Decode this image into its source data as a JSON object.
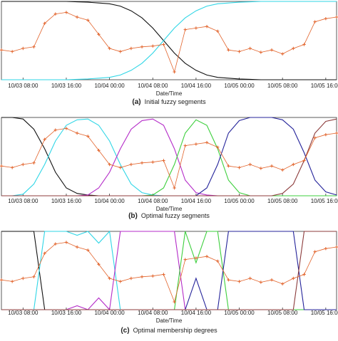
{
  "chart_data": [
    {
      "type": "line",
      "xlabel": "Date/Time",
      "caption_label": "(a)",
      "caption": "Initial fuzzy segments",
      "xlim": [
        4,
        66
      ],
      "ylim": [
        0,
        1
      ],
      "xticks": [
        {
          "value": 8,
          "label": "10/03 08:00"
        },
        {
          "value": 16,
          "label": "10/03 16:00"
        },
        {
          "value": 24,
          "label": "10/04 00:00"
        },
        {
          "value": 32,
          "label": "10/04 08:00"
        },
        {
          "value": 40,
          "label": "10/04 16:00"
        },
        {
          "value": 48,
          "label": "10/05 00:00"
        },
        {
          "value": 56,
          "label": "10/05 08:00"
        },
        {
          "value": 64,
          "label": "10/05 16:00"
        }
      ],
      "x": [
        4,
        6,
        8,
        10,
        12,
        14,
        16,
        18,
        20,
        22,
        24,
        26,
        28,
        30,
        32,
        34,
        36,
        38,
        40,
        42,
        44,
        46,
        48,
        50,
        52,
        54,
        56,
        58,
        60,
        62,
        64,
        66
      ],
      "series": [
        {
          "color": "#e2632b",
          "marker": "+",
          "values": [
            0.38,
            0.36,
            0.4,
            0.42,
            0.72,
            0.84,
            0.86,
            0.8,
            0.76,
            0.58,
            0.4,
            0.36,
            0.4,
            0.42,
            0.43,
            0.45,
            0.1,
            0.64,
            0.66,
            0.68,
            0.62,
            0.38,
            0.36,
            0.4,
            0.35,
            0.38,
            0.33,
            0.4,
            0.45,
            0.74,
            0.78,
            0.8
          ]
        },
        {
          "color": "#111111",
          "values": [
            1,
            1,
            1,
            1,
            1,
            1,
            1,
            0.995,
            0.99,
            0.98,
            0.97,
            0.94,
            0.88,
            0.79,
            0.66,
            0.5,
            0.34,
            0.21,
            0.12,
            0.06,
            0.03,
            0.02,
            0.01,
            0.005,
            0,
            0,
            0,
            0,
            0,
            0,
            0,
            0
          ]
        },
        {
          "color": "#2fd6e6",
          "values": [
            0,
            0,
            0,
            0,
            0,
            0,
            0,
            0.005,
            0.01,
            0.02,
            0.03,
            0.06,
            0.12,
            0.21,
            0.34,
            0.5,
            0.66,
            0.79,
            0.88,
            0.94,
            0.97,
            0.98,
            0.99,
            0.995,
            1,
            1,
            1,
            1,
            1,
            1,
            1,
            1
          ]
        }
      ]
    },
    {
      "type": "line",
      "xlabel": "Date/Time",
      "caption_label": "(b)",
      "caption": "Optimal fuzzy segments",
      "xlim": [
        4,
        66
      ],
      "ylim": [
        0,
        1
      ],
      "xticks": [
        {
          "value": 8,
          "label": "10/03 08:00"
        },
        {
          "value": 16,
          "label": "10/03 16:00"
        },
        {
          "value": 24,
          "label": "10/04 00:00"
        },
        {
          "value": 32,
          "label": "10/04 08:00"
        },
        {
          "value": 40,
          "label": "10/04 16:00"
        },
        {
          "value": 48,
          "label": "10/05 00:00"
        },
        {
          "value": 56,
          "label": "10/05 08:00"
        },
        {
          "value": 64,
          "label": "10/05 16:00"
        }
      ],
      "x": [
        4,
        6,
        8,
        10,
        12,
        14,
        16,
        18,
        20,
        22,
        24,
        26,
        28,
        30,
        32,
        34,
        36,
        38,
        40,
        42,
        44,
        46,
        48,
        50,
        52,
        54,
        56,
        58,
        60,
        62,
        64,
        66
      ],
      "series": [
        {
          "color": "#e2632b",
          "marker": "+",
          "values": [
            0.38,
            0.36,
            0.4,
            0.42,
            0.72,
            0.84,
            0.86,
            0.8,
            0.76,
            0.58,
            0.4,
            0.36,
            0.4,
            0.42,
            0.43,
            0.45,
            0.1,
            0.64,
            0.66,
            0.68,
            0.62,
            0.38,
            0.36,
            0.4,
            0.35,
            0.38,
            0.33,
            0.4,
            0.45,
            0.74,
            0.78,
            0.8
          ]
        },
        {
          "color": "#111111",
          "values": [
            1,
            1,
            0.98,
            0.85,
            0.6,
            0.3,
            0.1,
            0.03,
            0.01,
            0,
            0,
            0,
            0,
            0,
            0,
            0,
            0,
            0,
            0,
            0,
            0,
            0,
            0,
            0,
            0,
            0,
            0,
            0,
            0,
            0,
            0,
            0
          ]
        },
        {
          "color": "#2fd6e6",
          "values": [
            0,
            0,
            0.02,
            0.15,
            0.4,
            0.7,
            0.9,
            0.97,
            0.98,
            0.9,
            0.7,
            0.4,
            0.15,
            0.04,
            0.01,
            0,
            0,
            0,
            0,
            0,
            0,
            0,
            0,
            0,
            0,
            0,
            0,
            0,
            0,
            0,
            0,
            0
          ]
        },
        {
          "color": "#b42bc8",
          "values": [
            0,
            0,
            0,
            0,
            0,
            0,
            0,
            0,
            0.01,
            0.1,
            0.3,
            0.6,
            0.85,
            0.96,
            0.98,
            0.9,
            0.6,
            0.2,
            0.04,
            0.01,
            0,
            0,
            0,
            0,
            0,
            0,
            0,
            0,
            0,
            0,
            0,
            0
          ]
        },
        {
          "color": "#3ccf3c",
          "values": [
            0,
            0,
            0,
            0,
            0,
            0,
            0,
            0,
            0,
            0,
            0,
            0,
            0,
            0,
            0.01,
            0.1,
            0.4,
            0.8,
            0.97,
            0.9,
            0.6,
            0.2,
            0.04,
            0,
            0,
            0,
            0,
            0,
            0,
            0,
            0,
            0
          ]
        },
        {
          "color": "#24239a",
          "values": [
            0,
            0,
            0,
            0,
            0,
            0,
            0,
            0,
            0,
            0,
            0,
            0,
            0,
            0,
            0,
            0,
            0,
            0,
            0,
            0.1,
            0.4,
            0.8,
            0.96,
            1,
            1,
            1,
            0.97,
            0.85,
            0.55,
            0.2,
            0.05,
            0.01
          ]
        },
        {
          "color": "#8c3b3b",
          "values": [
            0,
            0,
            0,
            0,
            0,
            0,
            0,
            0,
            0,
            0,
            0,
            0,
            0,
            0,
            0,
            0,
            0,
            0,
            0,
            0,
            0,
            0,
            0,
            0,
            0,
            0,
            0.03,
            0.15,
            0.45,
            0.8,
            0.95,
            0.98
          ]
        }
      ]
    },
    {
      "type": "line",
      "xlabel": "Date/Time",
      "caption_label": "(c)",
      "caption": "Optimal membership degrees",
      "xlim": [
        4,
        66
      ],
      "ylim": [
        0,
        1
      ],
      "xticks": [
        {
          "value": 8,
          "label": "10/03 08:00"
        },
        {
          "value": 16,
          "label": "10/03 16:00"
        },
        {
          "value": 24,
          "label": "10/04 00:00"
        },
        {
          "value": 32,
          "label": "10/04 08:00"
        },
        {
          "value": 40,
          "label": "10/04 16:00"
        },
        {
          "value": 48,
          "label": "10/05 00:00"
        },
        {
          "value": 56,
          "label": "10/05 08:00"
        },
        {
          "value": 64,
          "label": "10/05 16:00"
        }
      ],
      "x": [
        4,
        6,
        8,
        10,
        12,
        14,
        16,
        18,
        20,
        22,
        24,
        26,
        28,
        30,
        32,
        34,
        36,
        38,
        40,
        42,
        44,
        46,
        48,
        50,
        52,
        54,
        56,
        58,
        60,
        62,
        64,
        66
      ],
      "series": [
        {
          "color": "#e2632b",
          "marker": "+",
          "values": [
            0.38,
            0.36,
            0.4,
            0.42,
            0.72,
            0.84,
            0.86,
            0.8,
            0.76,
            0.58,
            0.4,
            0.36,
            0.4,
            0.42,
            0.43,
            0.45,
            0.1,
            0.64,
            0.66,
            0.68,
            0.62,
            0.38,
            0.36,
            0.4,
            0.35,
            0.38,
            0.33,
            0.4,
            0.45,
            0.74,
            0.78,
            0.8
          ]
        },
        {
          "color": "#111111",
          "values": [
            1,
            1,
            1,
            1,
            0,
            0,
            0,
            0,
            0,
            0,
            0,
            0,
            0,
            0,
            0,
            0,
            0,
            0,
            0,
            0,
            0,
            0,
            0,
            0,
            0,
            0,
            0,
            0,
            0,
            0,
            0,
            0
          ]
        },
        {
          "color": "#2fd6e6",
          "values": [
            0,
            0,
            0,
            0,
            1,
            1,
            1,
            0.95,
            1,
            0.85,
            1,
            0,
            0,
            0,
            0,
            0,
            0,
            0,
            0,
            0,
            0,
            0,
            0,
            0,
            0,
            0,
            0,
            0,
            0,
            0,
            0,
            0
          ]
        },
        {
          "color": "#b42bc8",
          "values": [
            0,
            0,
            0,
            0,
            0,
            0,
            0,
            0.05,
            0,
            0.15,
            0,
            1,
            1,
            1,
            1,
            1,
            1,
            0,
            0,
            0,
            0,
            0,
            0,
            0,
            0,
            0,
            0,
            0,
            0,
            0,
            0,
            0
          ]
        },
        {
          "color": "#3ccf3c",
          "values": [
            0,
            0,
            0,
            0,
            0,
            0,
            0,
            0,
            0,
            0,
            0,
            0,
            0,
            0,
            0,
            0,
            0,
            1,
            0.6,
            1,
            1,
            0,
            0,
            0,
            0,
            0,
            0,
            0,
            0,
            0,
            0,
            0
          ]
        },
        {
          "color": "#24239a",
          "values": [
            0,
            0,
            0,
            0,
            0,
            0,
            0,
            0,
            0,
            0,
            0,
            0,
            0,
            0,
            0,
            0,
            0,
            0,
            0.4,
            0,
            0,
            1,
            1,
            1,
            1,
            1,
            1,
            1,
            0,
            0,
            0,
            0
          ]
        },
        {
          "color": "#8c3b3b",
          "values": [
            0,
            0,
            0,
            0,
            0,
            0,
            0,
            0,
            0,
            0,
            0,
            0,
            0,
            0,
            0,
            0,
            0,
            0,
            0,
            0,
            0,
            0,
            0,
            0,
            0,
            0,
            0,
            0,
            1,
            1,
            1,
            1
          ]
        }
      ]
    }
  ]
}
